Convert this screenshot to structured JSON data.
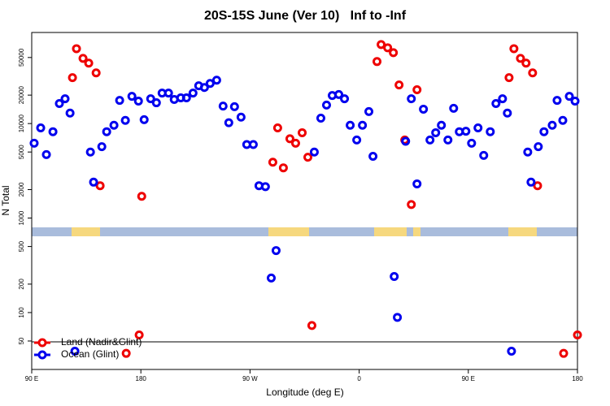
{
  "chart_data": {
    "type": "scatter",
    "title": "20S-15S June (Ver 10)   Inf to -Inf",
    "x_label": "Longitude (deg E)",
    "y_label": "N Total",
    "log_y": true,
    "legend": "bottom-left",
    "xlim": [
      90,
      540
    ],
    "ylim": [
      25,
      92000
    ],
    "xticks": [
      {
        "value": 90,
        "label": "90 E"
      },
      {
        "value": 180,
        "label": "180"
      },
      {
        "value": 270,
        "label": "90 W"
      },
      {
        "value": 360,
        "label": "0"
      },
      {
        "value": 450,
        "label": "90 E"
      },
      {
        "value": 540,
        "label": "180"
      }
    ],
    "yticks": [
      50,
      100,
      200,
      500,
      1000,
      2000,
      5000,
      10000,
      20000,
      50000
    ],
    "series": [
      {
        "name": "Land (Nadir&Glint)",
        "color": "#ee0000",
        "x": [
          123.6,
          126.9,
          132.3,
          137.0,
          143.1,
          146.4,
          167.9,
          178.6,
          180.7,
          288.8,
          292.8,
          297.5,
          302.9,
          307.6,
          313.0,
          317.7,
          321.0,
          374.7,
          378.1,
          383.5,
          388.2,
          392.9,
          397.6,
          403.0,
          407.7,
          483.6,
          487.6,
          493.0,
          497.6,
          503.0,
          507.1,
          528.6,
          540.0
        ],
        "values": [
          30600,
          62000,
          49000,
          43600,
          34400,
          2200,
          37,
          58,
          1700,
          3900,
          9000,
          3400,
          6900,
          6200,
          8000,
          4400,
          73,
          45300,
          68500,
          63400,
          56200,
          25600,
          6700,
          1390,
          22800,
          30600,
          62000,
          49000,
          43600,
          34400,
          2200,
          37,
          58
        ]
      },
      {
        "name": "Ocean (Glint)",
        "color": "#0000ee",
        "x": [
          92.0,
          97.4,
          102.1,
          107.5,
          112.8,
          117.5,
          121.6,
          125.6,
          138.4,
          141.0,
          147.8,
          151.8,
          157.8,
          162.5,
          167.2,
          172.6,
          178.0,
          182.7,
          188.1,
          192.8,
          197.5,
          202.8,
          207.5,
          212.9,
          217.6,
          223.0,
          227.7,
          232.4,
          237.1,
          242.5,
          247.8,
          252.5,
          257.2,
          262.6,
          267.3,
          272.7,
          277.4,
          282.7,
          287.5,
          291.5,
          323.0,
          328.4,
          333.1,
          337.8,
          343.2,
          347.9,
          352.6,
          358.0,
          362.7,
          368.0,
          371.4,
          388.9,
          391.5,
          398.3,
          403.0,
          407.7,
          413.0,
          418.4,
          423.1,
          427.8,
          433.2,
          437.9,
          442.6,
          448.0,
          452.7,
          458.0,
          462.7,
          468.1,
          472.8,
          478.2,
          482.2,
          485.6,
          499.0,
          501.7,
          507.7,
          512.4,
          519.2,
          523.2,
          527.9,
          533.3,
          538.0
        ],
        "values": [
          6200,
          9000,
          4700,
          8200,
          16300,
          18300,
          12900,
          39,
          5000,
          2400,
          5700,
          8200,
          9600,
          17600,
          10800,
          19400,
          17300,
          11000,
          18300,
          16600,
          21000,
          21000,
          18000,
          18700,
          18700,
          21000,
          25100,
          24100,
          26600,
          28800,
          15300,
          10200,
          15100,
          11700,
          6000,
          6000,
          2200,
          2150,
          232,
          453,
          5000,
          11400,
          15700,
          19800,
          20300,
          18300,
          9600,
          6700,
          9600,
          13400,
          4500,
          241,
          89,
          6500,
          18300,
          2300,
          14200,
          6700,
          8000,
          9600,
          6700,
          14500,
          8200,
          8300,
          6200,
          9000,
          4600,
          8200,
          16300,
          18300,
          12900,
          39,
          5000,
          2400,
          5700,
          8200,
          9600,
          17600,
          10800,
          19400,
          17300
        ]
      }
    ]
  }
}
